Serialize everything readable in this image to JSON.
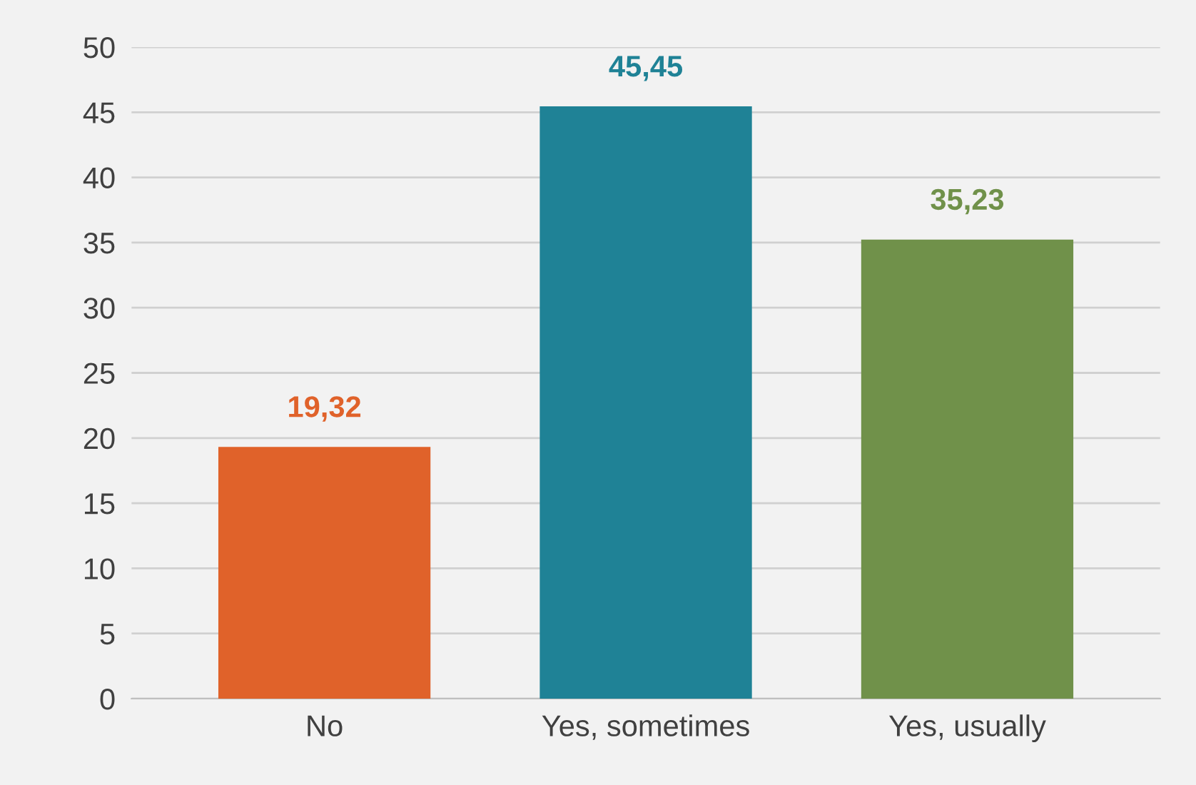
{
  "chart_data": {
    "type": "bar",
    "categories": [
      "No",
      "Yes, sometimes",
      "Yes, usually"
    ],
    "values": [
      19.32,
      45.45,
      35.23
    ],
    "colors": [
      "#e0622a",
      "#1f8296",
      "#70914a"
    ],
    "value_labels": [
      "19,32",
      "45,45",
      "35,23"
    ],
    "ylim": [
      0,
      50
    ],
    "yticks": [
      0,
      5,
      10,
      15,
      20,
      25,
      30,
      35,
      40,
      45,
      50
    ],
    "grid": "y",
    "legend": false
  }
}
